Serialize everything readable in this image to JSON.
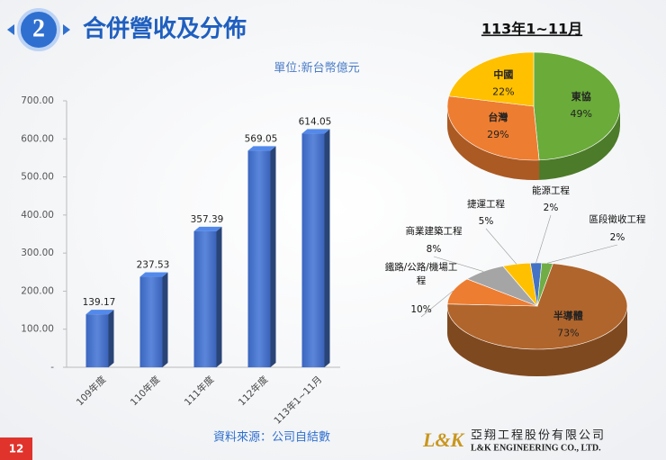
{
  "slide": {
    "section_number": "2",
    "title": "合併營收及分佈",
    "source": "資料來源：公司自結數",
    "page_number": "12",
    "logo": "L&K",
    "company_name": "亞翔工程股份有限公司",
    "company_name_en": "L&K ENGINEERING CO., LTD."
  },
  "chart_data": [
    {
      "type": "bar",
      "subtitle": "單位:新台幣億元",
      "categories": [
        "109年度",
        "110年度",
        "111年度",
        "112年度",
        "113年1~11月"
      ],
      "values": [
        139.17,
        237.53,
        357.39,
        569.05,
        614.05
      ],
      "color": "#4472c4",
      "ylim": [
        0,
        700
      ],
      "yticks": [
        {
          "value": 0,
          "label": "-"
        },
        {
          "value": 100,
          "label": "100.00"
        },
        {
          "value": 200,
          "label": "200.00"
        },
        {
          "value": 300,
          "label": "300.00"
        },
        {
          "value": 400,
          "label": "400.00"
        },
        {
          "value": 500,
          "label": "500.00"
        },
        {
          "value": 600,
          "label": "600.00"
        },
        {
          "value": 700,
          "label": "700.00"
        }
      ],
      "grid": false
    },
    {
      "type": "pie",
      "title": "113年1~11月",
      "categories": [
        "東協",
        "台灣",
        "中國"
      ],
      "values": [
        49,
        29,
        22
      ],
      "value_labels": [
        "49%",
        "29%",
        "22%"
      ],
      "colors": [
        "#6aab3a",
        "#ed7d31",
        "#ffc000"
      ]
    },
    {
      "type": "pie",
      "categories": [
        "半導體",
        "鐵路/公路/機場工程",
        "商業建築工程",
        "捷運工程",
        "能源工程",
        "區段徵收工程"
      ],
      "values": [
        73,
        10,
        8,
        5,
        2,
        2
      ],
      "value_labels": [
        "73%",
        "10%",
        "8%",
        "5%",
        "2%",
        "2%"
      ],
      "colors": [
        "#b0652c",
        "#ed7d31",
        "#a5a5a5",
        "#ffc000",
        "#4472c4",
        "#70ad47"
      ]
    }
  ]
}
